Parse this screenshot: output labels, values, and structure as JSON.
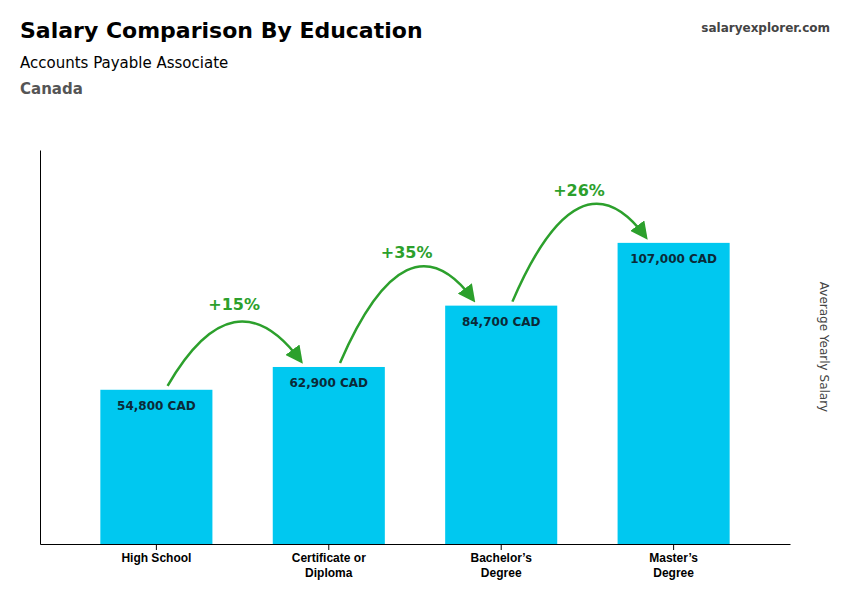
{
  "chart_data": {
    "type": "bar",
    "title": "Salary Comparison By Education",
    "subtitle": "Accounts Payable Associate",
    "country": "Canada",
    "source": "salaryexplorer.com",
    "ylabel": "Average Yearly Salary",
    "categories": [
      "High School",
      "Certificate or\nDiploma",
      "Bachelor’s\nDegree",
      "Master’s\nDegree"
    ],
    "values": [
      54800,
      62900,
      84700,
      107000
    ],
    "value_labels": [
      "54,800 CAD",
      "62,900 CAD",
      "84,700 CAD",
      "107,000 CAD"
    ],
    "annotations": [
      "+15%",
      "+35%",
      "+26%"
    ],
    "color": "#00c8f0",
    "ylim": [
      0,
      140000
    ],
    "grid": false,
    "data_labels": true,
    "tick_labels": "x"
  }
}
